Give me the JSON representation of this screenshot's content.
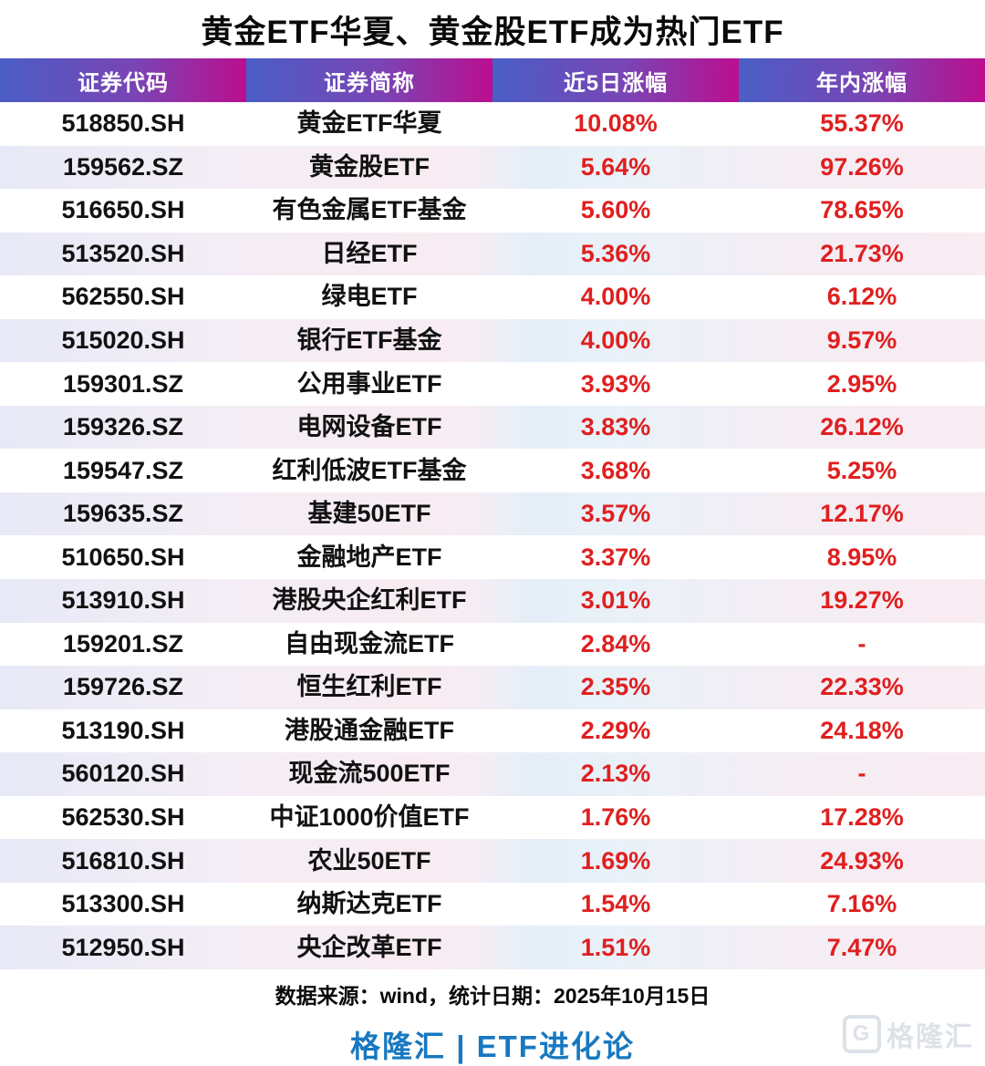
{
  "title": "黄金ETF华夏、黄金股ETF成为热门ETF",
  "chart_data": {
    "type": "table",
    "title": "黄金ETF华夏、黄金股ETF成为热门ETF",
    "columns": [
      "证券代码",
      "证券简称",
      "近5日涨幅",
      "年内涨幅"
    ],
    "rows": [
      [
        "518850.SH",
        "黄金ETF华夏",
        "10.08%",
        "55.37%"
      ],
      [
        "159562.SZ",
        "黄金股ETF",
        "5.64%",
        "97.26%"
      ],
      [
        "516650.SH",
        "有色金属ETF基金",
        "5.60%",
        "78.65%"
      ],
      [
        "513520.SH",
        "日经ETF",
        "5.36%",
        "21.73%"
      ],
      [
        "562550.SH",
        "绿电ETF",
        "4.00%",
        "6.12%"
      ],
      [
        "515020.SH",
        "银行ETF基金",
        "4.00%",
        "9.57%"
      ],
      [
        "159301.SZ",
        "公用事业ETF",
        "3.93%",
        "2.95%"
      ],
      [
        "159326.SZ",
        "电网设备ETF",
        "3.83%",
        "26.12%"
      ],
      [
        "159547.SZ",
        "红利低波ETF基金",
        "3.68%",
        "5.25%"
      ],
      [
        "159635.SZ",
        "基建50ETF",
        "3.57%",
        "12.17%"
      ],
      [
        "510650.SH",
        "金融地产ETF",
        "3.37%",
        "8.95%"
      ],
      [
        "513910.SH",
        "港股央企红利ETF",
        "3.01%",
        "19.27%"
      ],
      [
        "159201.SZ",
        "自由现金流ETF",
        "2.84%",
        "-"
      ],
      [
        "159726.SZ",
        "恒生红利ETF",
        "2.35%",
        "22.33%"
      ],
      [
        "513190.SH",
        "港股通金融ETF",
        "2.29%",
        "24.18%"
      ],
      [
        "560120.SH",
        "现金流500ETF",
        "2.13%",
        "-"
      ],
      [
        "562530.SH",
        "中证1000价值ETF",
        "1.76%",
        "17.28%"
      ],
      [
        "516810.SH",
        "农业50ETF",
        "1.69%",
        "24.93%"
      ],
      [
        "513300.SH",
        "纳斯达克ETF",
        "1.54%",
        "7.16%"
      ],
      [
        "512950.SH",
        "央企改革ETF",
        "1.51%",
        "7.47%"
      ]
    ]
  },
  "footer": {
    "source": "数据来源：wind，统计日期：2025年10月15日",
    "brand": "格隆汇 | ETF进化论",
    "watermark_text": "格隆汇",
    "watermark_glyph": "G"
  },
  "colors": {
    "header_gradient_start": "#4a5ec6",
    "header_gradient_end": "#bb0e8f",
    "value_red": "#e01f1f",
    "brand_blue": "#1878c0",
    "even_row_left": "#e7e9f6",
    "even_row_pink": "#f9ecf2"
  }
}
